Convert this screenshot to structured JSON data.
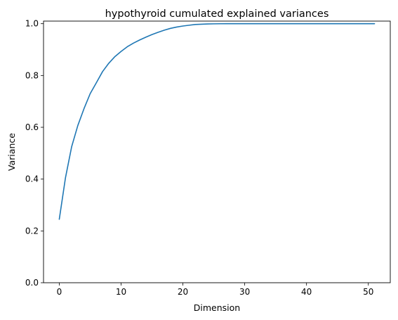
{
  "chart_data": {
    "type": "line",
    "title": "hypothyroid cumulated explained variances",
    "xlabel": "Dimension",
    "ylabel": "Variance",
    "xlim": [
      -2.55,
      53.55
    ],
    "ylim": [
      0.0,
      1.01
    ],
    "xticks": [
      0,
      10,
      20,
      30,
      40,
      50
    ],
    "yticks": [
      0.0,
      0.2,
      0.4,
      0.6,
      0.8,
      1.0
    ],
    "xtick_labels": [
      "0",
      "10",
      "20",
      "30",
      "40",
      "50"
    ],
    "ytick_labels": [
      "0.0",
      "0.2",
      "0.4",
      "0.6",
      "0.8",
      "1.0"
    ],
    "grid": false,
    "legend": "none",
    "series": [
      {
        "color": "#1f77b4",
        "x": [
          0,
          1,
          2,
          3,
          4,
          5,
          6,
          7,
          8,
          9,
          10,
          11,
          12,
          13,
          14,
          15,
          16,
          17,
          18,
          19,
          20,
          21,
          22,
          23,
          24,
          25,
          26,
          27,
          28,
          29,
          30,
          31,
          32,
          33,
          34,
          35,
          36,
          37,
          38,
          39,
          40,
          41,
          42,
          43,
          44,
          45,
          46,
          47,
          48,
          49,
          50,
          51
        ],
        "y": [
          0.245,
          0.405,
          0.525,
          0.607,
          0.672,
          0.73,
          0.772,
          0.815,
          0.847,
          0.873,
          0.893,
          0.911,
          0.925,
          0.937,
          0.948,
          0.958,
          0.967,
          0.975,
          0.982,
          0.987,
          0.991,
          0.994,
          0.997,
          0.998,
          0.999,
          0.9995,
          0.9998,
          1.0,
          1.0,
          1.0,
          1.0,
          1.0,
          1.0,
          1.0,
          1.0,
          1.0,
          1.0,
          1.0,
          1.0,
          1.0,
          1.0,
          1.0,
          1.0,
          1.0,
          1.0,
          1.0,
          1.0,
          1.0,
          1.0,
          1.0,
          1.0,
          1.0
        ]
      }
    ]
  }
}
